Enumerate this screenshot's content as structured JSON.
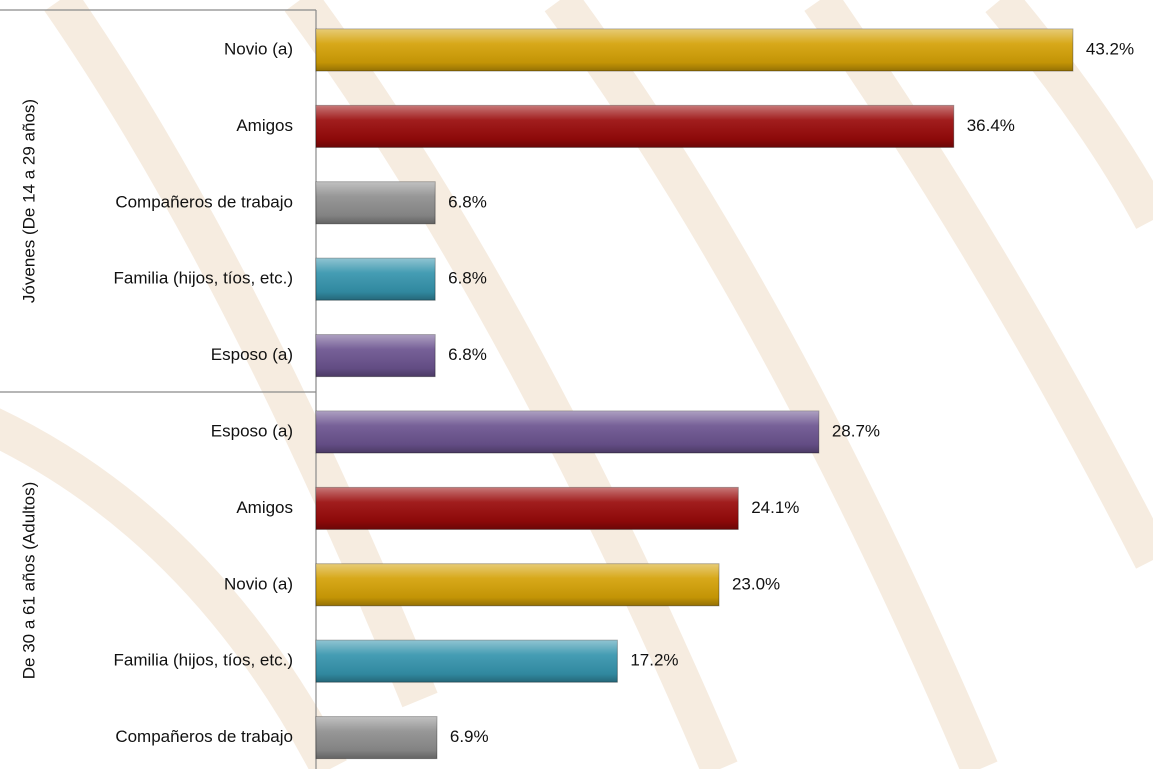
{
  "chart_data": {
    "type": "bar",
    "orientation": "horizontal",
    "groups": [
      {
        "label": "Jóvenes (De 14 a 29 años)",
        "categories": [
          "Novio (a)",
          "Amigos",
          "Compañeros de trabajo",
          "Familia (hijos, tíos, etc.)",
          "Esposo (a)"
        ],
        "values": [
          43.2,
          36.4,
          6.8,
          6.8,
          6.8
        ],
        "value_labels": [
          "43.2%",
          "36.4%",
          "6.8%",
          "6.8%",
          "6.8%"
        ],
        "colors": [
          "#d4a106",
          "#990a0a",
          "#8e8e8e",
          "#3594ad",
          "#6b538f"
        ]
      },
      {
        "label": "De 30 a 61 años (Adultos)",
        "categories": [
          "Esposo (a)",
          "Amigos",
          "Novio (a)",
          "Familia (hijos, tíos, etc.)",
          "Compañeros de trabajo"
        ],
        "values": [
          28.7,
          24.1,
          23.0,
          17.2,
          6.9
        ],
        "value_labels": [
          "28.7%",
          "24.1%",
          "23.0%",
          "17.2%",
          "6.9%"
        ],
        "colors": [
          "#6b538f",
          "#990a0a",
          "#d4a106",
          "#3594ad",
          "#8e8e8e"
        ]
      }
    ]
  }
}
